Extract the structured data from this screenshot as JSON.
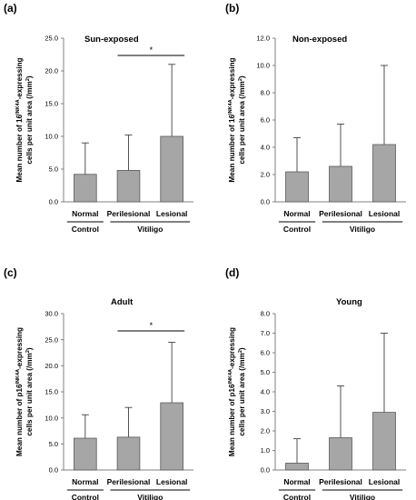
{
  "chart_data": [
    {
      "panel": "(a)",
      "type": "bar",
      "title": "Sun-exposed",
      "ylabel_line1": "Mean number of 16INK4A-expressing",
      "ylabel_line1_pre": "Mean number of 16",
      "ylabel_line1_sup": "INK4A",
      "ylabel_line1_post": "-expressing",
      "ylabel_line2_pre": "cells per  unit  area (/mm",
      "ylabel_line2_sup": "2",
      "ylabel_line2_post": ")",
      "categories": [
        "Normal",
        "Perilesional",
        "Lesional"
      ],
      "values": [
        4.2,
        4.8,
        10.0
      ],
      "error_upper": [
        9.0,
        10.2,
        21.0
      ],
      "ylim": [
        0,
        25
      ],
      "yticks": [
        "0.0",
        "5.0",
        "10.0",
        "15.0",
        "20.0",
        "25.0"
      ],
      "groups": [
        {
          "label": "Control",
          "categories": [
            "Normal"
          ]
        },
        {
          "label": "Vitiligo",
          "categories": [
            "Perilesional",
            "Lesional"
          ]
        }
      ],
      "significance": {
        "between": [
          "Perilesional",
          "Lesional"
        ],
        "label": "*"
      }
    },
    {
      "panel": "(b)",
      "type": "bar",
      "title": "Non-exposed",
      "ylabel_line1_pre": "Mean number of 16",
      "ylabel_line1_sup": "INK4A",
      "ylabel_line1_post": "-expressing",
      "ylabel_line2_pre": "cells per  unit  area (/mm",
      "ylabel_line2_sup": "2",
      "ylabel_line2_post": ")",
      "categories": [
        "Normal",
        "Perilesional",
        "Lesional"
      ],
      "values": [
        2.2,
        2.6,
        4.2
      ],
      "error_upper": [
        4.7,
        5.7,
        10.0
      ],
      "ylim": [
        0,
        12
      ],
      "yticks": [
        "0.0",
        "2.0",
        "4.0",
        "6.0",
        "8.0",
        "10.0",
        "12.0"
      ],
      "groups": [
        {
          "label": "Control",
          "categories": [
            "Normal"
          ]
        },
        {
          "label": "Vitiligo",
          "categories": [
            "Perilesional",
            "Lesional"
          ]
        }
      ]
    },
    {
      "panel": "(c)",
      "type": "bar",
      "title": "Adult",
      "ylabel_line1_pre": "Mean number of p16",
      "ylabel_line1_sup": "INK4A",
      "ylabel_line1_post": "-expressing",
      "ylabel_line2_pre": "cells per  unit  area (/mm",
      "ylabel_line2_sup": "2",
      "ylabel_line2_post": ")",
      "categories": [
        "Normal",
        "Perilesional",
        "Lesional"
      ],
      "values": [
        6.1,
        6.3,
        12.9
      ],
      "error_upper": [
        10.6,
        12.0,
        24.5
      ],
      "ylim": [
        0,
        30
      ],
      "yticks": [
        "0.0",
        "5.0",
        "10.0",
        "15.0",
        "20.0",
        "25.0",
        "30.0"
      ],
      "groups": [
        {
          "label": "Control",
          "categories": [
            "Normal"
          ]
        },
        {
          "label": "Vitiligo",
          "categories": [
            "Perilesional",
            "Lesional"
          ]
        }
      ],
      "significance": {
        "between": [
          "Perilesional",
          "Lesional"
        ],
        "label": "*"
      }
    },
    {
      "panel": "(d)",
      "type": "bar",
      "title": "Young",
      "ylabel_line1_pre": "Mean number of p16",
      "ylabel_line1_sup": "INK4A",
      "ylabel_line1_post": "-expressing",
      "ylabel_line2_pre": "cells per  unit  area (/mm",
      "ylabel_line2_sup": "2",
      "ylabel_line2_post": ")",
      "categories": [
        "Normal",
        "Perilesional",
        "Lesional"
      ],
      "values": [
        0.35,
        1.65,
        2.95
      ],
      "error_upper": [
        1.6,
        4.3,
        7.0
      ],
      "ylim": [
        0,
        8
      ],
      "yticks": [
        "0.0",
        "1.0",
        "2.0",
        "3.0",
        "4.0",
        "5.0",
        "6.0",
        "7.0",
        "8.0"
      ],
      "groups": [
        {
          "label": "Control",
          "categories": [
            "Normal"
          ]
        },
        {
          "label": "Vitiligo",
          "categories": [
            "Perilesional",
            "Lesional"
          ]
        }
      ]
    }
  ],
  "colors": {
    "bar_fill": "#a6a6a6",
    "bar_stroke": "#595959",
    "axis": "#808080"
  }
}
